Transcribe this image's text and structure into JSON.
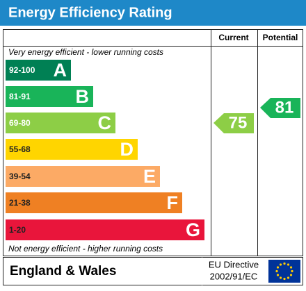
{
  "header": {
    "title": "Energy Efficiency Rating"
  },
  "columns": {
    "current": "Current",
    "potential": "Potential"
  },
  "top_note": "Very energy efficient - lower running costs",
  "bottom_note": "Not energy efficient - higher running costs",
  "bands": [
    {
      "range": "92-100",
      "letter": "A",
      "color": "#008054"
    },
    {
      "range": "81-91",
      "letter": "B",
      "color": "#19b459"
    },
    {
      "range": "69-80",
      "letter": "C",
      "color": "#8dce46"
    },
    {
      "range": "55-68",
      "letter": "D",
      "color": "#ffd500"
    },
    {
      "range": "39-54",
      "letter": "E",
      "color": "#fcaa65"
    },
    {
      "range": "21-38",
      "letter": "F",
      "color": "#ef8023"
    },
    {
      "range": "1-20",
      "letter": "G",
      "color": "#e9153b"
    }
  ],
  "current": {
    "value": "75",
    "color": "#8dce46"
  },
  "potential": {
    "value": "81",
    "color": "#19b459"
  },
  "footer": {
    "region": "England & Wales",
    "directive_line1": "EU Directive",
    "directive_line2": "2002/91/EC"
  }
}
